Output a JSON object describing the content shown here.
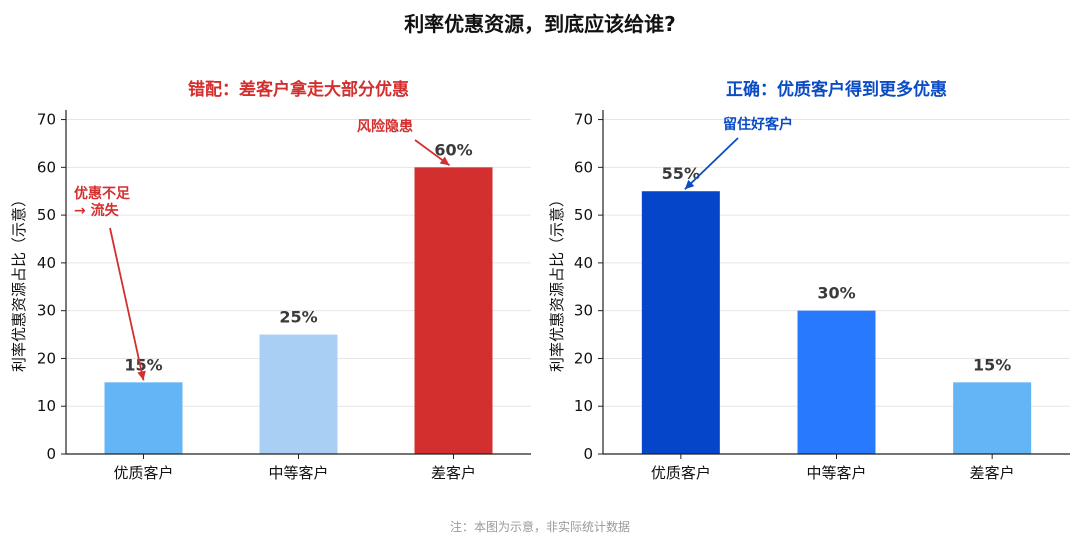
{
  "title": "利率优惠资源，到底应该给谁?",
  "footnote": "注：本图为示意，非实际统计数据",
  "chart_data": [
    {
      "type": "bar",
      "title": "错配：差客户拿走大部分优惠",
      "title_color": "#d32f2f",
      "categories": [
        "优质客户",
        "中等客户",
        "差客户"
      ],
      "values": [
        15,
        25,
        60
      ],
      "value_labels": [
        "15%",
        "25%",
        "60%"
      ],
      "colors": [
        "#64b5f6",
        "#aacff5",
        "#d32f2f"
      ],
      "ylabel": "利率优惠资源占比（示意）",
      "ylim": [
        0,
        72
      ],
      "yticks": [
        0,
        10,
        20,
        30,
        40,
        50,
        60,
        70
      ],
      "grid": true,
      "annotations": [
        {
          "text": [
            "优惠不足",
            "→ 流失"
          ],
          "target_category": "优质客户",
          "target_value": 15,
          "color": "#d32f2f"
        },
        {
          "text": [
            "风险隐患"
          ],
          "target_category": "差客户",
          "target_value": 60,
          "color": "#d32f2f"
        }
      ]
    },
    {
      "type": "bar",
      "title": "正确：优质客户得到更多优惠",
      "title_color": "#0b4cc4",
      "categories": [
        "优质客户",
        "中等客户",
        "差客户"
      ],
      "values": [
        55,
        30,
        15
      ],
      "value_labels": [
        "55%",
        "30%",
        "15%"
      ],
      "colors": [
        "#0545c9",
        "#2979ff",
        "#64b5f6"
      ],
      "ylabel": "利率优惠资源占比（示意）",
      "ylim": [
        0,
        72
      ],
      "yticks": [
        0,
        10,
        20,
        30,
        40,
        50,
        60,
        70
      ],
      "grid": true,
      "annotations": [
        {
          "text": [
            "留住好客户"
          ],
          "target_category": "优质客户",
          "target_value": 55,
          "color": "#0b4cc4"
        }
      ]
    }
  ]
}
